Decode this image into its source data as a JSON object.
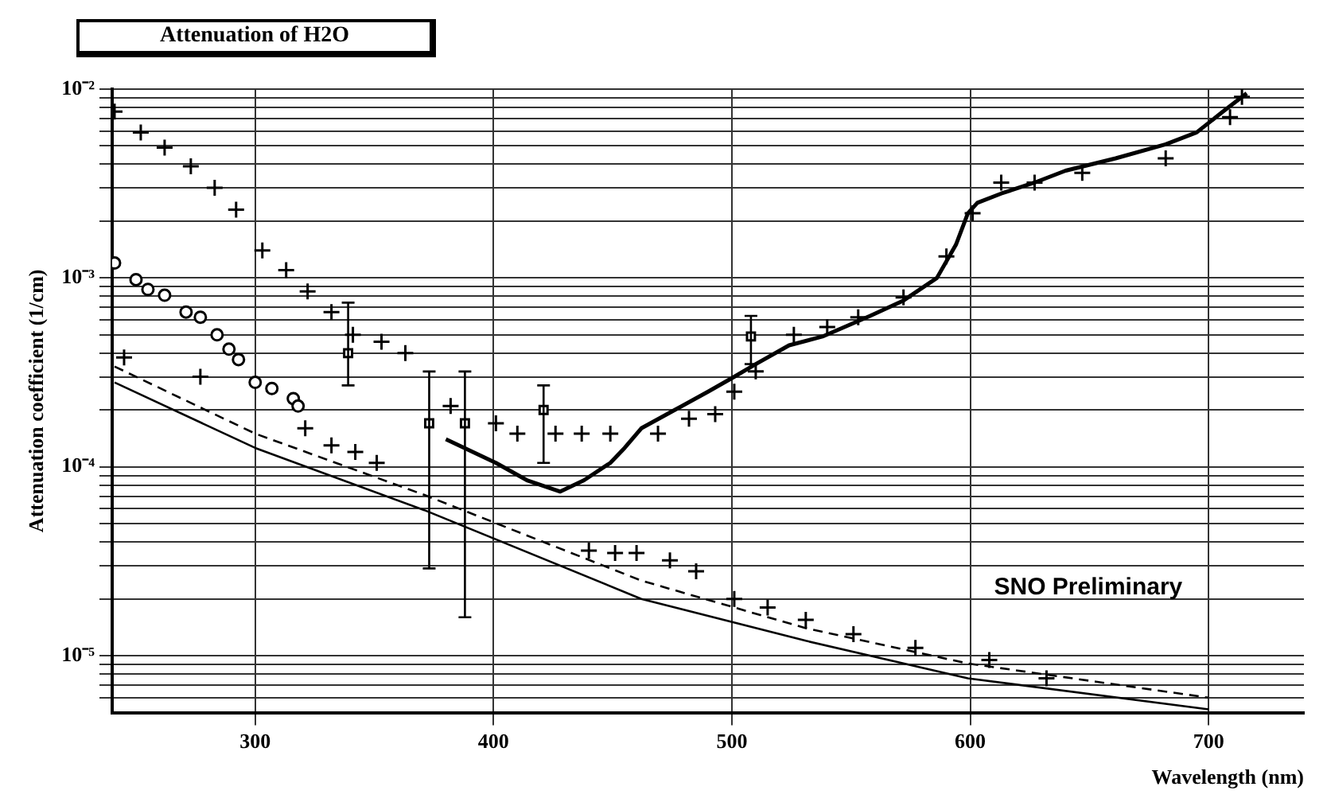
{
  "chart_data": {
    "type": "scatter",
    "title": "Attenuation of H2O",
    "xlabel": "Wavelength (nm)",
    "ylabel": "Attenuation coefficient (1/cm)",
    "log": "y",
    "grid": true,
    "legend": false,
    "xlim": [
      240,
      740
    ],
    "xticks": [
      300,
      400,
      500,
      600,
      700
    ],
    "ylim": [
      5e-06,
      0.01
    ],
    "yticks": [
      {
        "value": 6e-06,
        "label": null
      },
      {
        "value": 7e-06,
        "label": null
      },
      {
        "value": 8e-06,
        "label": null
      },
      {
        "value": 9e-06,
        "label": null
      },
      {
        "value": 1e-05,
        "label": "10⁻⁵"
      },
      {
        "value": 2e-05,
        "label": null
      },
      {
        "value": 3e-05,
        "label": null
      },
      {
        "value": 4e-05,
        "label": null
      },
      {
        "value": 5e-05,
        "label": null
      },
      {
        "value": 6e-05,
        "label": null
      },
      {
        "value": 7e-05,
        "label": null
      },
      {
        "value": 8e-05,
        "label": null
      },
      {
        "value": 9e-05,
        "label": null
      },
      {
        "value": 0.0001,
        "label": "10⁻⁴"
      },
      {
        "value": 0.0002,
        "label": null
      },
      {
        "value": 0.0003,
        "label": null
      },
      {
        "value": 0.0004,
        "label": null
      },
      {
        "value": 0.0005,
        "label": null
      },
      {
        "value": 0.0006,
        "label": null
      },
      {
        "value": 0.0007,
        "label": null
      },
      {
        "value": 0.0008,
        "label": null
      },
      {
        "value": 0.0009,
        "label": null
      },
      {
        "value": 0.001,
        "label": "10⁻³"
      },
      {
        "value": 0.002,
        "label": null
      },
      {
        "value": 0.003,
        "label": null
      },
      {
        "value": 0.004,
        "label": null
      },
      {
        "value": 0.005,
        "label": null
      },
      {
        "value": 0.006,
        "label": null
      },
      {
        "value": 0.007,
        "label": null
      },
      {
        "value": 0.008,
        "label": null
      },
      {
        "value": 0.009,
        "label": null
      },
      {
        "value": 0.01,
        "label": "10⁻²"
      }
    ],
    "annotations": [
      "SNO Preliminary"
    ],
    "series": [
      {
        "marker": "cross",
        "color": "#000000",
        "x": [
          241,
          252,
          262,
          273,
          283,
          292,
          303,
          313,
          322,
          332,
          341,
          353,
          363,
          382,
          401,
          410,
          426,
          437,
          449,
          469,
          482,
          493,
          501,
          510,
          526,
          540,
          553,
          572,
          590,
          601,
          613,
          627,
          647,
          682,
          709,
          714
        ],
        "values": [
          0.0076,
          0.0059,
          0.0049,
          0.0039,
          0.003,
          0.0023,
          0.0014,
          0.0011,
          0.00085,
          0.00066,
          0.0005,
          0.00046,
          0.0004,
          0.00021,
          0.00017,
          0.00015,
          0.00015,
          0.00015,
          0.00015,
          0.00015,
          0.00018,
          0.00019,
          0.00025,
          0.00032,
          0.0005,
          0.00055,
          0.00062,
          0.00079,
          0.0013,
          0.0022,
          0.0032,
          0.0032,
          0.0036,
          0.0043,
          0.0071,
          0.0091
        ]
      },
      {
        "type": "line",
        "marker": "none",
        "line_style": "solid",
        "color": "#000000",
        "x": [
          380,
          401,
          414,
          428,
          438,
          449,
          455,
          462,
          476,
          490,
          501,
          510,
          524,
          538,
          558,
          572,
          586,
          594,
          599,
          603,
          613,
          627,
          640,
          661,
          682,
          695,
          706,
          716
        ],
        "values": [
          0.00014,
          0.000105,
          8.5e-05,
          7.4e-05,
          8.5e-05,
          0.000105,
          0.000126,
          0.00016,
          0.0002,
          0.00025,
          0.0003,
          0.00035,
          0.00044,
          0.00049,
          0.00063,
          0.00076,
          0.001,
          0.0015,
          0.0022,
          0.0025,
          0.0028,
          0.0032,
          0.0037,
          0.0043,
          0.0051,
          0.0059,
          0.0076,
          0.0095
        ]
      },
      {
        "marker": "circle",
        "color": "#000000",
        "x": [
          241,
          250,
          255,
          262,
          271,
          277,
          284,
          289,
          293,
          300,
          307,
          316,
          318
        ],
        "values": [
          0.0012,
          0.00098,
          0.00087,
          0.00081,
          0.00066,
          0.00062,
          0.0005,
          0.00042,
          0.00037,
          0.00028,
          0.00026,
          0.00023,
          0.00021
        ]
      },
      {
        "marker": "square",
        "color": "#000000",
        "x": [
          339,
          373,
          388,
          421,
          508
        ],
        "values": [
          0.0004,
          0.00017,
          0.00017,
          0.0002,
          0.00049
        ],
        "errors": [
          [
            0.00027,
            0.00074
          ],
          [
            2.9e-05,
            0.00032
          ],
          [
            1.6e-05,
            0.00032
          ],
          [
            0.000105,
            0.00027
          ],
          [
            0.00035,
            0.00063
          ]
        ]
      },
      {
        "marker": "cross",
        "color": "#000000",
        "x": [
          245,
          277,
          321,
          332,
          342,
          351,
          440,
          451,
          460,
          474,
          485,
          501,
          515,
          531,
          551,
          577,
          608,
          632
        ],
        "values": [
          0.00038,
          0.0003,
          0.00016,
          0.00013,
          0.00012,
          0.000105,
          3.6e-05,
          3.5e-05,
          3.5e-05,
          3.2e-05,
          2.8e-05,
          2e-05,
          1.8e-05,
          1.55e-05,
          1.3e-05,
          1.1e-05,
          9.5e-06,
          7.6e-06
        ]
      },
      {
        "type": "line",
        "marker": "none",
        "line_style": "solid",
        "color": "#000000",
        "x": [
          241,
          300,
          371,
          462,
          531,
          599,
          700
        ],
        "values": [
          0.00028,
          0.000126,
          5.9e-05,
          2e-05,
          1.2e-05,
          7.6e-06,
          5.2e-06
        ]
      },
      {
        "type": "line",
        "marker": "none",
        "line_style": "dashed",
        "color": "#000000",
        "x": [
          241,
          300,
          371,
          462,
          531,
          599,
          700
        ],
        "values": [
          0.00034,
          0.00015,
          7.1e-05,
          2.5e-05,
          1.4e-05,
          9.1e-06,
          6e-06
        ]
      }
    ]
  }
}
